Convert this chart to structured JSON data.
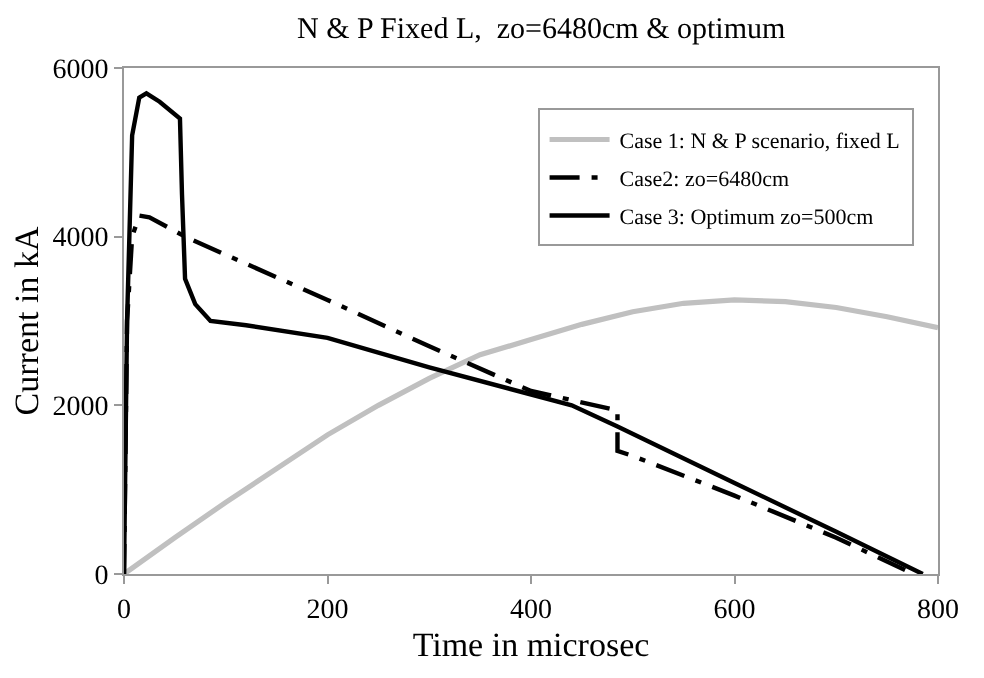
{
  "chart_data": {
    "type": "line",
    "title": "N & P Fixed L,  zo=6480cm & optimum",
    "xlabel": "Time in microsec",
    "ylabel": "Current in kA",
    "xlim": [
      0,
      800
    ],
    "xticks": [
      0,
      200,
      400,
      600,
      800
    ],
    "ylim": [
      0,
      6000
    ],
    "yticks": [
      0,
      2000,
      4000,
      6000
    ],
    "grid": false,
    "legend": "top right",
    "marker": "none",
    "series": [
      {
        "name": "Case 1: N & P scenario, fixed L",
        "color": "#c0c0c0",
        "line_style": "solid",
        "x": [
          0,
          50,
          100,
          150,
          200,
          250,
          300,
          350,
          400,
          450,
          500,
          550,
          600,
          650,
          700,
          750,
          800
        ],
        "values": [
          0,
          430,
          850,
          1250,
          1650,
          2000,
          2320,
          2600,
          2780,
          2960,
          3110,
          3210,
          3250,
          3230,
          3160,
          3050,
          2920
        ]
      },
      {
        "name": "Case2: zo=6480cm",
        "color": "#000000",
        "line_style": "dashed",
        "x": [
          0,
          3,
          8,
          15,
          25,
          60,
          200,
          300,
          400,
          485,
          485,
          500,
          600,
          700,
          776
        ],
        "values": [
          0,
          3000,
          4000,
          4250,
          4230,
          4000,
          3250,
          2700,
          2170,
          1940,
          1460,
          1400,
          930,
          430,
          0
        ]
      },
      {
        "name": "Case 3: Optimum zo=500cm",
        "color": "#000000",
        "line_style": "solid",
        "x": [
          0,
          3,
          8,
          15,
          22,
          35,
          55,
          57,
          60,
          70,
          85,
          120,
          200,
          300,
          440,
          485,
          600,
          700,
          785
        ],
        "values": [
          0,
          3000,
          5200,
          5650,
          5700,
          5600,
          5400,
          4500,
          3500,
          3200,
          3000,
          2950,
          2800,
          2450,
          2000,
          1750,
          1080,
          500,
          0
        ]
      }
    ]
  }
}
